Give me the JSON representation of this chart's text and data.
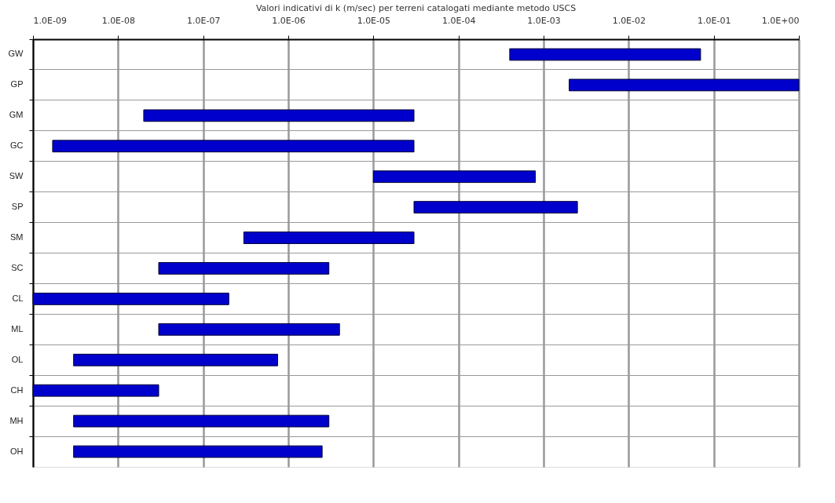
{
  "chart_data": {
    "type": "bar",
    "orientation": "horizontal",
    "title": "Valori indicativi di k (m/sec) per terreni catalogati mediante metodo USCS",
    "categories": [
      "GW",
      "GP",
      "GM",
      "GC",
      "SW",
      "SP",
      "SM",
      "SC",
      "CL",
      "ML",
      "OL",
      "CH",
      "MH",
      "OH"
    ],
    "base": [
      0.0004,
      0.002,
      2e-08,
      1.7e-09,
      1e-05,
      3e-05,
      3e-07,
      3e-08,
      1e-09,
      3e-08,
      3e-09,
      1e-09,
      3e-09,
      3e-09
    ],
    "values": [
      0.0696,
      0.998,
      2.998e-05,
      2.99983e-05,
      0.00079,
      0.00247,
      2.97e-05,
      2.97e-06,
      1.99e-07,
      3.97e-06,
      7.47e-07,
      2.9e-08,
      2.997e-06,
      2.497e-06
    ],
    "color": "#0000cc",
    "log": "x",
    "xlim": [
      1e-09,
      1
    ],
    "xticks": [
      {
        "value": 1e-09,
        "label": "1.0E-09"
      },
      {
        "value": 1e-08,
        "label": "1.0E-08"
      },
      {
        "value": 1e-07,
        "label": "1.0E-07"
      },
      {
        "value": 1e-06,
        "label": "1.0E-06"
      },
      {
        "value": 1e-05,
        "label": "1.0E-05"
      },
      {
        "value": 0.0001,
        "label": "1.0E-04"
      },
      {
        "value": 0.001,
        "label": "1.0E-03"
      },
      {
        "value": 0.01,
        "label": "1.0E-02"
      },
      {
        "value": 0.1,
        "label": "1.0E-01"
      },
      {
        "value": 1,
        "label": "1.0E+00"
      }
    ],
    "grid": true
  }
}
